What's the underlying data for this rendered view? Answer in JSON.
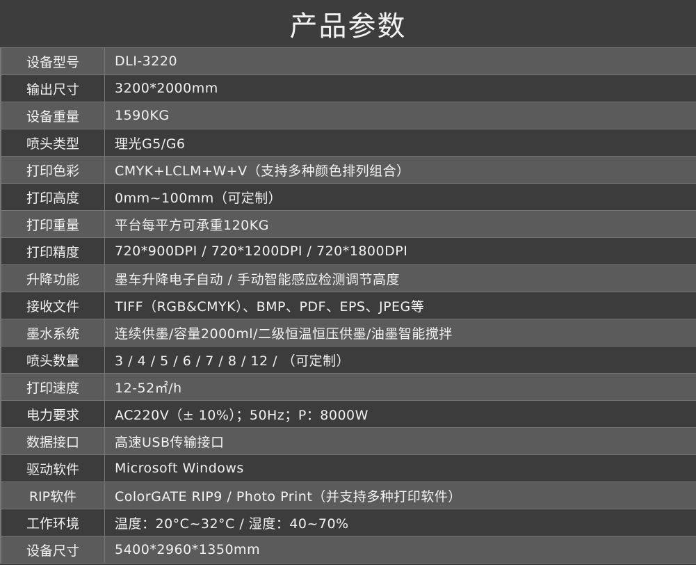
{
  "title": "产品参数",
  "rows": [
    {
      "label": "设备型号",
      "value": "DLI-3220"
    },
    {
      "label": "输出尺寸",
      "value": "3200*2000mm"
    },
    {
      "label": "设备重量",
      "value": "1590KG"
    },
    {
      "label": "喷头类型",
      "value": "理光G5/G6"
    },
    {
      "label": "打印色彩",
      "value": "CMYK+LCLM+W+V（支持多种颜色排列组合）"
    },
    {
      "label": "打印高度",
      "value": "0mm~100mm（可定制）"
    },
    {
      "label": "打印重量",
      "value": "平台每平方可承重120KG"
    },
    {
      "label": "打印精度",
      "value": "720*900DPI / 720*1200DPI / 720*1800DPI"
    },
    {
      "label": "升降功能",
      "value": "墨车升降电子自动 / 手动智能感应检测调节高度"
    },
    {
      "label": "接收文件",
      "value": "TIFF（RGB&CMYK）、BMP、PDF、EPS、JPEG等"
    },
    {
      "label": "墨水系统",
      "value": "连续供墨/容量2000ml/二级恒温恒压供墨/油墨智能搅拌"
    },
    {
      "label": "喷头数量",
      "value": "3 / 4 / 5 / 6 / 7 / 8 / 12 / （可定制）"
    },
    {
      "label": "打印速度",
      "value": "12-52㎡/h"
    },
    {
      "label": "电力要求",
      "value": "AC220V（± 10%）；50Hz；P：8000W"
    },
    {
      "label": "数据接口",
      "value": "高速USB传输接口"
    },
    {
      "label": "驱动软件",
      "value": "Microsoft Windows"
    },
    {
      "label": "RIP软件",
      "value": "ColorGATE RIP9 / Photo Print（并支持多种打印软件）"
    },
    {
      "label": "工作环境",
      "value": "温度：20°C~32°C / 湿度：40~70%"
    },
    {
      "label": "设备尺寸",
      "value": "5400*2960*1350mm"
    }
  ]
}
